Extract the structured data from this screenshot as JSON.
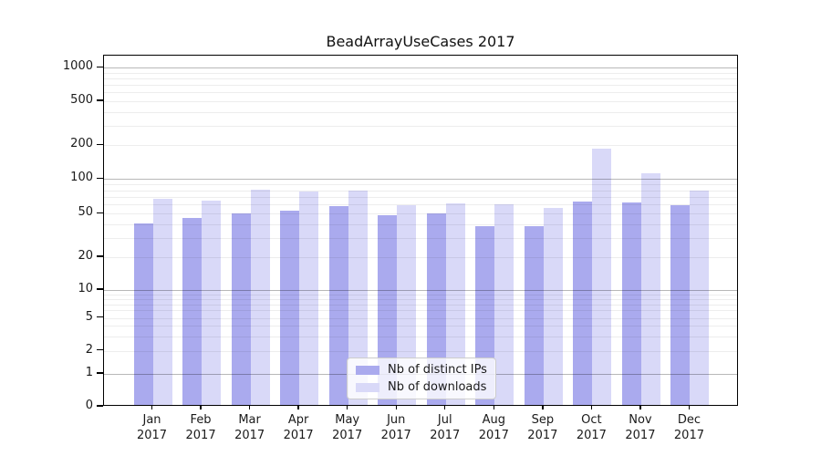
{
  "chart_data": {
    "type": "bar",
    "title": "BeadArrayUseCases 2017",
    "categories": [
      "Jan",
      "Feb",
      "Mar",
      "Apr",
      "May",
      "Jun",
      "Jul",
      "Aug",
      "Sep",
      "Oct",
      "Nov",
      "Dec"
    ],
    "year_label": "2017",
    "series": [
      {
        "name": "Nb of distinct IPs",
        "color": "#aaaaee",
        "values": [
          39,
          44,
          49,
          51,
          56,
          47,
          49,
          37,
          37,
          62,
          61,
          57
        ]
      },
      {
        "name": "Nb of downloads",
        "color": "#d9d9f8",
        "values": [
          65,
          63,
          78,
          75,
          77,
          57,
          59,
          58,
          54,
          181,
          108,
          77
        ]
      }
    ],
    "y_axis": {
      "scale": "log-like",
      "ticks": [
        0,
        1,
        2,
        5,
        10,
        20,
        50,
        100,
        200,
        500,
        1000
      ],
      "major_gridlines": [
        1,
        10,
        100,
        1000
      ],
      "minor_gridlines": [
        2,
        3,
        4,
        5,
        6,
        7,
        8,
        9,
        20,
        30,
        40,
        50,
        60,
        70,
        80,
        90,
        200,
        300,
        400,
        500,
        600,
        700,
        800,
        900
      ],
      "anchor_fracs": [
        [
          0,
          1.0
        ],
        [
          1,
          0.9065
        ],
        [
          2,
          0.8403
        ],
        [
          5,
          0.7468
        ],
        [
          10,
          0.6675
        ],
        [
          20,
          0.574
        ],
        [
          50,
          0.4506
        ],
        [
          100,
          0.3519
        ],
        [
          200,
          0.2553
        ],
        [
          500,
          0.1299
        ],
        [
          1000,
          0.0345
        ]
      ]
    },
    "x_axis": {
      "grid": false
    },
    "legend": {
      "position": "inside-bottom-center",
      "entries": [
        "Nb of distinct IPs",
        "Nb of downloads"
      ]
    }
  }
}
